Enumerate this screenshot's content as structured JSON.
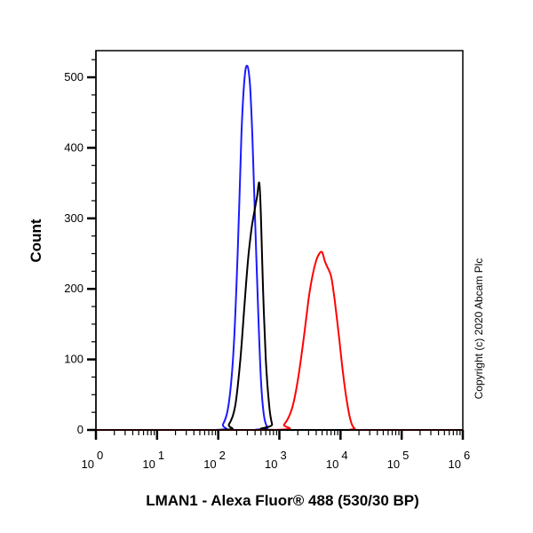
{
  "chart_data": {
    "type": "line",
    "title": "",
    "xlabel": "LMAN1 - Alexa Fluor® 488 (530/30 BP)",
    "ylabel": "Count",
    "x_scale": "log",
    "xlim": [
      1,
      1000000
    ],
    "ylim": [
      0,
      535
    ],
    "x_ticks": [
      {
        "base": "10",
        "exp": "0",
        "value": 1
      },
      {
        "base": "10",
        "exp": "1",
        "value": 10
      },
      {
        "base": "10",
        "exp": "2",
        "value": 100
      },
      {
        "base": "10",
        "exp": "3",
        "value": 1000
      },
      {
        "base": "10",
        "exp": "4",
        "value": 10000
      },
      {
        "base": "10",
        "exp": "5",
        "value": 100000
      },
      {
        "base": "10",
        "exp": "6",
        "value": 1000000
      }
    ],
    "y_ticks": [
      "0",
      "100",
      "200",
      "300",
      "400",
      "500"
    ],
    "grid": false,
    "legend": null,
    "annotation": "Copyright (c) 2020 Abcam Plc",
    "series": [
      {
        "name": "Blue histogram",
        "color": "#1a1aff",
        "x": [
          1,
          90,
          120,
          150,
          180,
          210,
          240,
          270,
          300,
          330,
          360,
          400,
          450,
          500,
          560,
          640,
          720,
          1000000
        ],
        "y": [
          0,
          0,
          8,
          40,
          120,
          260,
          420,
          500,
          516,
          490,
          420,
          300,
          170,
          70,
          20,
          3,
          0,
          0
        ]
      },
      {
        "name": "Black histogram",
        "color": "#000000",
        "x": [
          1,
          110,
          150,
          190,
          230,
          270,
          310,
          350,
          390,
          430,
          470,
          500,
          540,
          600,
          680,
          760,
          860,
          1000000
        ],
        "y": [
          0,
          0,
          8,
          35,
          100,
          180,
          245,
          285,
          310,
          330,
          350,
          300,
          200,
          100,
          35,
          8,
          0,
          0
        ]
      },
      {
        "name": "Red histogram",
        "color": "#ff0000",
        "x": [
          1,
          800,
          1200,
          1600,
          2000,
          2500,
          3000,
          3500,
          4000,
          4500,
          5000,
          5500,
          6000,
          7000,
          8000,
          9500,
          11000,
          13000,
          15000,
          17000,
          20000,
          1000000
        ],
        "y": [
          0,
          0,
          8,
          30,
          70,
          130,
          185,
          220,
          240,
          250,
          252,
          240,
          232,
          218,
          185,
          130,
          80,
          35,
          10,
          2,
          0,
          0
        ]
      }
    ]
  }
}
